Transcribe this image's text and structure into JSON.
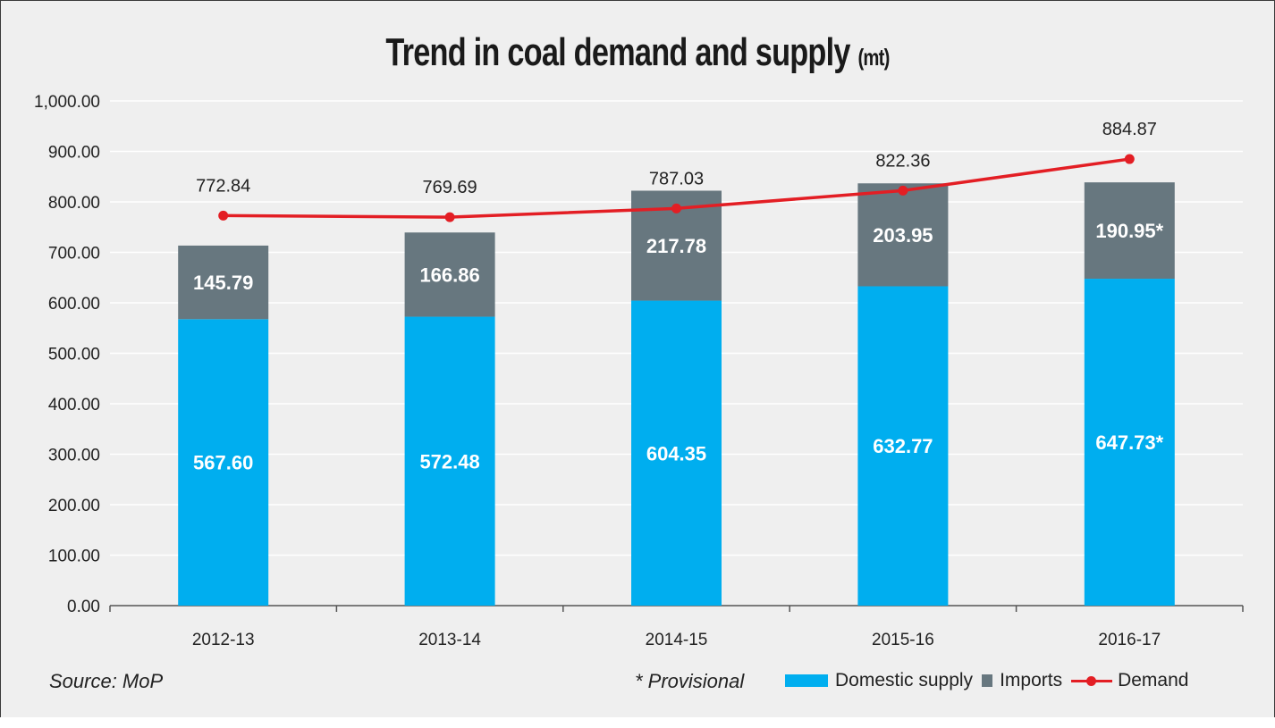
{
  "title": "Trend in coal demand and supply",
  "title_unit": "(mt)",
  "source": "Source: MoP",
  "note": "* Provisional",
  "colors": {
    "domestic": "#00aeef",
    "imports": "#67777f",
    "demand": "#e31e24",
    "grid": "#ffffff",
    "axis": "#555555",
    "background": "#efefef"
  },
  "legend": {
    "domestic": "Domestic supply",
    "imports": "Imports",
    "demand": "Demand"
  },
  "chart_data": {
    "type": "bar",
    "stacked": true,
    "title": "Trend in coal demand and supply (mt)",
    "categories": [
      "2012-13",
      "2013-14",
      "2014-15",
      "2015-16",
      "2016-17"
    ],
    "series": [
      {
        "name": "Domestic supply",
        "type": "bar",
        "values": [
          567.6,
          572.48,
          604.35,
          632.77,
          647.73
        ],
        "labels": [
          "567.60",
          "572.48",
          "604.35",
          "632.77",
          "647.73*"
        ]
      },
      {
        "name": "Imports",
        "type": "bar",
        "values": [
          145.79,
          166.86,
          217.78,
          203.95,
          190.95
        ],
        "labels": [
          "145.79",
          "166.86",
          "217.78",
          "203.95",
          "190.95*"
        ]
      },
      {
        "name": "Demand",
        "type": "line",
        "values": [
          772.84,
          769.69,
          787.03,
          822.36,
          884.87
        ],
        "labels": [
          "772.84",
          "769.69",
          "787.03",
          "822.36",
          "884.87"
        ]
      }
    ],
    "ylim": [
      0,
      1000
    ],
    "yticks": [
      "0.00",
      "100.00",
      "200.00",
      "300.00",
      "400.00",
      "500.00",
      "600.00",
      "700.00",
      "800.00",
      "900.00",
      "1,000.00"
    ],
    "grid": true,
    "legend_position": "bottom-right"
  }
}
